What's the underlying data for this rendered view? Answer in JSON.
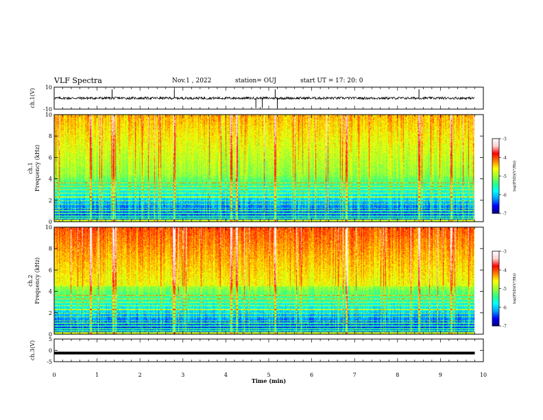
{
  "header": {
    "title": "VLF Spectra",
    "date": "Nov.1 , 2022",
    "station": "station= OUJ",
    "start_label": "start UT =",
    "start_time": "17: 20: 0"
  },
  "colorbar": {
    "ticks": [
      "-3",
      "-4",
      "-5",
      "-6",
      "-7"
    ],
    "label": "log(PSD)(V²/Hz)",
    "colors": [
      "#000080",
      "#0000ff",
      "#00a0ff",
      "#00ffff",
      "#30ff80",
      "#a0ff30",
      "#ffff00",
      "#ff8000",
      "#ff0000",
      "#ffd0d0",
      "#ffffff"
    ]
  },
  "chart_data": [
    {
      "id": "ch1_waveform",
      "type": "line",
      "ylabel": "ch.1(V)",
      "yticks": [
        "10",
        "-10"
      ],
      "ylim": [
        -10,
        10
      ],
      "description_values": {
        "baseline": 0,
        "spikes_up": [
          1.35,
          2.8,
          5.15,
          8.5
        ],
        "spikes_down": [
          4.7,
          4.85,
          5.2
        ]
      }
    },
    {
      "id": "ch1_spectrogram",
      "type": "heatmap",
      "ylabel_line1": "ch.1",
      "ylabel_line2": "Frequency (kHz)",
      "yticks": [
        "10",
        "8",
        "6",
        "4",
        "2",
        "0"
      ],
      "ylim": [
        0,
        10
      ],
      "zlim": [
        -7,
        -3
      ]
    },
    {
      "id": "ch2_spectrogram",
      "type": "heatmap",
      "ylabel_line1": "ch.2",
      "ylabel_line2": "Frequency (kHz)",
      "yticks": [
        "10",
        "8",
        "6",
        "4",
        "2",
        "0"
      ],
      "ylim": [
        0,
        10
      ],
      "zlim": [
        -7,
        -3
      ]
    },
    {
      "id": "ch3_waveform",
      "type": "line",
      "ylabel": "ch.3(V)",
      "yticks": [
        "5",
        "0",
        "-5"
      ],
      "ylim": [
        -5,
        5
      ],
      "description_values": {
        "baseline": -1.2
      }
    }
  ],
  "xaxis": {
    "label": "Time (min)",
    "ticks": [
      "0",
      "1",
      "2",
      "3",
      "4",
      "5",
      "6",
      "7",
      "8",
      "9",
      "10"
    ],
    "xlim": [
      0,
      10
    ],
    "data_end": 9.8
  }
}
